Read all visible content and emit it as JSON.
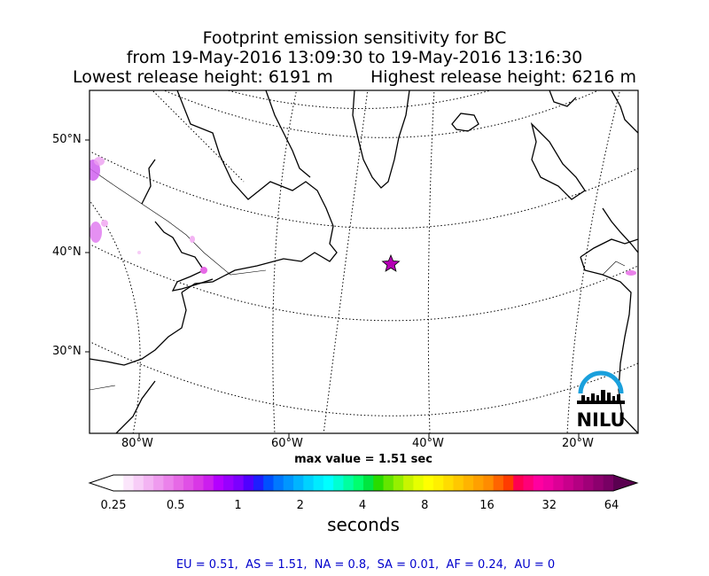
{
  "title": {
    "line1": "Footprint emission sensitivity for BC",
    "line2": "from 19-May-2016 13:09:30 to 19-May-2016 13:16:30",
    "line3": "Lowest release height: 6191 m       Highest release height: 6216 m"
  },
  "map": {
    "lat_labels": [
      "50°N",
      "40°N",
      "30°N"
    ],
    "lon_labels": [
      "80°W",
      "60°W",
      "40°W",
      "20°W"
    ],
    "release_marker": "star",
    "release_color": "#b400b4",
    "logo_text": "NILU",
    "logo_color": "#1aa0dc"
  },
  "colorbar": {
    "max_value_text": "max value = 1.51 sec",
    "tick_labels": [
      "0.25",
      "0.5",
      "1",
      "2",
      "4",
      "8",
      "16",
      "32",
      "64"
    ],
    "units": "seconds",
    "colors": [
      "#ffffff",
      "#fbe6fb",
      "#f7cdf7",
      "#f3b4f3",
      "#ef9bef",
      "#eb82eb",
      "#e669e6",
      "#e050e6",
      "#d937e6",
      "#cc1eee",
      "#b400ff",
      "#9800ff",
      "#7c00ff",
      "#5000ff",
      "#1e1eff",
      "#0050ff",
      "#0078ff",
      "#0096ff",
      "#00b4ff",
      "#00d2ff",
      "#00ebff",
      "#00ffff",
      "#00ffd2",
      "#00ffa0",
      "#00ff6e",
      "#00e640",
      "#28dc00",
      "#64e600",
      "#96f000",
      "#c8f500",
      "#e6ff00",
      "#ffff00",
      "#fff000",
      "#ffdc00",
      "#ffc800",
      "#ffb400",
      "#ffa000",
      "#ff8c00",
      "#ff6400",
      "#ff3c00",
      "#ff0050",
      "#ff0078",
      "#ff00a0",
      "#f000a0",
      "#dc0096",
      "#c8008c",
      "#b40082",
      "#a00078",
      "#8c006e",
      "#780064"
    ],
    "arrow_end_color": "#5a0050"
  },
  "summary": "EU = 0.51,  AS = 1.51,  NA = 0.8,  SA = 0.01,  AF = 0.24,  AU = 0",
  "summary_color": "#0000cc"
}
